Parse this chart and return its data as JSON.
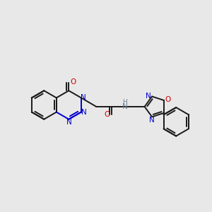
{
  "bg": "#e8e8e8",
  "bc": "#1a1a1a",
  "nc": "#0000cc",
  "oc": "#cc0000",
  "hc": "#708090",
  "lw": 1.4,
  "figsize": [
    3.0,
    3.0
  ],
  "dpi": 100,
  "xlim": [
    0,
    10
  ],
  "ylim": [
    0,
    7
  ]
}
